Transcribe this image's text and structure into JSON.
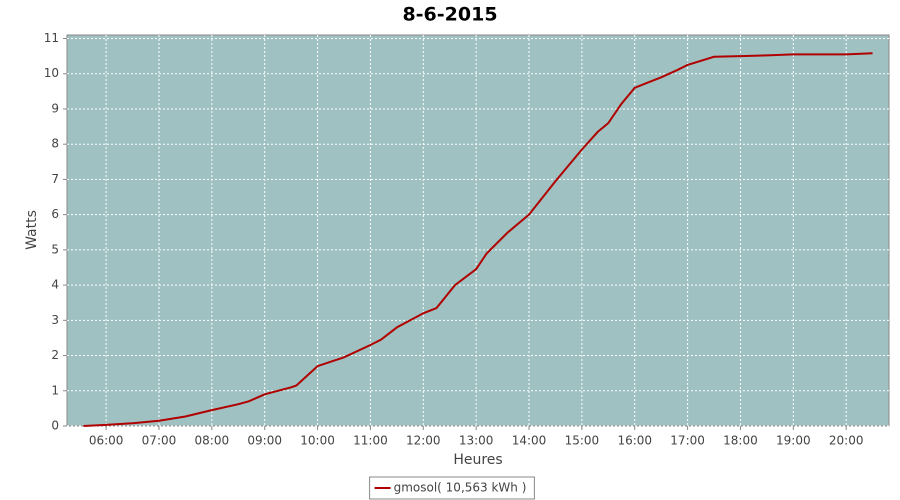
{
  "chart_data": {
    "type": "line",
    "title": "8-6-2015",
    "x_label": "Heures",
    "y_label": "Watts",
    "x": [
      5.57,
      6.0,
      6.5,
      7.0,
      7.5,
      8.0,
      8.5,
      8.7,
      9.0,
      9.5,
      9.6,
      10.0,
      10.5,
      11.0,
      11.2,
      11.5,
      12.0,
      12.25,
      12.6,
      13.0,
      13.2,
      13.6,
      14.0,
      14.5,
      15.0,
      15.3,
      15.5,
      15.75,
      16.0,
      16.2,
      16.5,
      16.8,
      17.0,
      17.5,
      18.0,
      18.5,
      19.0,
      19.5,
      20.0,
      20.5
    ],
    "series": [
      {
        "name": "gmosol( 10,563 kWh )",
        "color": "#b00000",
        "values": [
          0,
          0.03,
          0.08,
          0.15,
          0.27,
          0.45,
          0.62,
          0.7,
          0.9,
          1.1,
          1.15,
          1.7,
          1.95,
          2.3,
          2.45,
          2.8,
          3.2,
          3.35,
          4.0,
          4.45,
          4.9,
          5.5,
          6.0,
          6.95,
          7.85,
          8.35,
          8.6,
          9.15,
          9.6,
          9.72,
          9.9,
          10.1,
          10.25,
          10.48,
          10.5,
          10.52,
          10.55,
          10.55,
          10.55,
          10.58
        ]
      }
    ],
    "xlim": [
      5.26,
      20.81
    ],
    "ylim": [
      0,
      11.1
    ],
    "xticks": [
      {
        "value": 6,
        "label": "06:00"
      },
      {
        "value": 7,
        "label": "07:00"
      },
      {
        "value": 8,
        "label": "08:00"
      },
      {
        "value": 9,
        "label": "09:00"
      },
      {
        "value": 10,
        "label": "10:00"
      },
      {
        "value": 11,
        "label": "11:00"
      },
      {
        "value": 12,
        "label": "12:00"
      },
      {
        "value": 13,
        "label": "13:00"
      },
      {
        "value": 14,
        "label": "14:00"
      },
      {
        "value": 15,
        "label": "15:00"
      },
      {
        "value": 16,
        "label": "16:00"
      },
      {
        "value": 17,
        "label": "17:00"
      },
      {
        "value": 18,
        "label": "18:00"
      },
      {
        "value": 19,
        "label": "19:00"
      },
      {
        "value": 20,
        "label": "20:00"
      }
    ],
    "yticks": [
      0,
      1,
      2,
      3,
      4,
      5,
      6,
      7,
      8,
      9,
      10,
      11
    ],
    "grid": true,
    "plot_background": "#9fc1c1",
    "legend": "bottom"
  }
}
